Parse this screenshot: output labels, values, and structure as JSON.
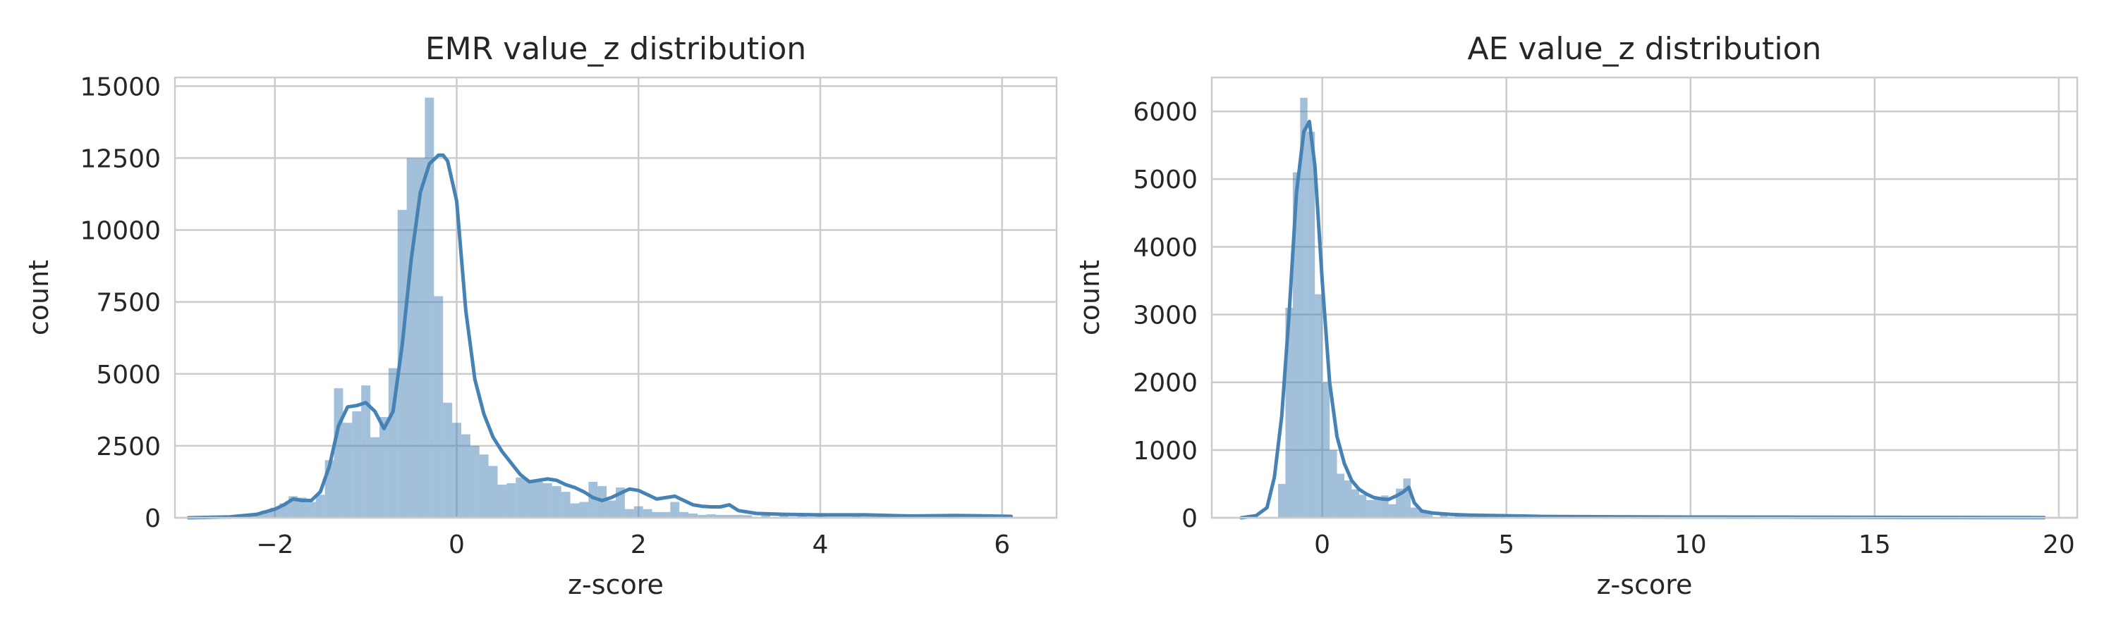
{
  "colors": {
    "bar": "#4682b4",
    "bar_opacity": 0.5,
    "kde": "#4682b4",
    "grid": "#cccccc",
    "text": "#262626"
  },
  "chart_data": [
    {
      "type": "bar",
      "title": "EMR value_z distribution",
      "xlabel": "z-score",
      "ylabel": "count",
      "xlim": [
        -3.1,
        6.6
      ],
      "ylim": [
        0,
        15300
      ],
      "xticks": [
        -2,
        0,
        2,
        4,
        6
      ],
      "xtick_labels": [
        "−2",
        "0",
        "2",
        "4",
        "6"
      ],
      "yticks": [
        0,
        2500,
        5000,
        7500,
        10000,
        12500,
        15000
      ],
      "ytick_labels": [
        "0",
        "2500",
        "5000",
        "7500",
        "10000",
        "12500",
        "15000"
      ],
      "grid": true,
      "histogram": {
        "x": [
          -2.9,
          -2.8,
          -2.7,
          -2.6,
          -2.5,
          -2.4,
          -2.3,
          -2.2,
          -2.1,
          -2.0,
          -1.9,
          -1.8,
          -1.7,
          -1.6,
          -1.5,
          -1.4,
          -1.3,
          -1.2,
          -1.1,
          -1.0,
          -0.9,
          -0.8,
          -0.7,
          -0.6,
          -0.5,
          -0.4,
          -0.3,
          -0.2,
          -0.1,
          0.0,
          0.1,
          0.2,
          0.3,
          0.4,
          0.5,
          0.6,
          0.7,
          0.8,
          0.9,
          1.0,
          1.1,
          1.2,
          1.3,
          1.4,
          1.5,
          1.6,
          1.7,
          1.8,
          1.9,
          2.0,
          2.1,
          2.2,
          2.3,
          2.4,
          2.5,
          2.6,
          2.7,
          2.8,
          2.9,
          3.0,
          3.1,
          3.2,
          3.4,
          3.6,
          3.8,
          4.0,
          4.4,
          4.8,
          5.2,
          5.6,
          6.0
        ],
        "values": [
          20,
          25,
          30,
          40,
          50,
          80,
          120,
          150,
          250,
          350,
          500,
          750,
          700,
          550,
          800,
          2000,
          4500,
          3300,
          3700,
          4600,
          2800,
          3500,
          5200,
          10700,
          12500,
          12500,
          14600,
          7700,
          4000,
          3300,
          2900,
          2500,
          2200,
          1800,
          1150,
          1200,
          1400,
          1300,
          1250,
          1200,
          1100,
          900,
          500,
          550,
          1250,
          1100,
          600,
          1050,
          300,
          400,
          300,
          200,
          200,
          550,
          200,
          150,
          100,
          120,
          100,
          100,
          100,
          90,
          80,
          80,
          70,
          60,
          50,
          45,
          40,
          35,
          30
        ],
        "bin_width": 0.1
      },
      "kde": {
        "x": [
          -2.95,
          -2.5,
          -2.2,
          -2.0,
          -1.9,
          -1.8,
          -1.7,
          -1.6,
          -1.5,
          -1.4,
          -1.3,
          -1.2,
          -1.1,
          -1.0,
          -0.9,
          -0.8,
          -0.7,
          -0.6,
          -0.5,
          -0.4,
          -0.3,
          -0.2,
          -0.15,
          -0.1,
          0.0,
          0.1,
          0.2,
          0.3,
          0.4,
          0.5,
          0.6,
          0.7,
          0.8,
          0.9,
          1.0,
          1.1,
          1.2,
          1.3,
          1.4,
          1.5,
          1.6,
          1.7,
          1.8,
          1.9,
          2.0,
          2.1,
          2.2,
          2.3,
          2.4,
          2.5,
          2.6,
          2.7,
          2.8,
          2.9,
          3.0,
          3.1,
          3.3,
          3.6,
          4.0,
          4.5,
          5.0,
          5.5,
          6.1
        ],
        "values": [
          0,
          30,
          120,
          300,
          450,
          650,
          600,
          600,
          900,
          1800,
          3200,
          3850,
          3900,
          4000,
          3700,
          3100,
          3700,
          6000,
          9000,
          11300,
          12300,
          12600,
          12600,
          12400,
          11000,
          7200,
          4800,
          3600,
          2800,
          2300,
          1900,
          1500,
          1250,
          1300,
          1350,
          1300,
          1150,
          1050,
          900,
          700,
          600,
          700,
          850,
          1000,
          950,
          800,
          650,
          700,
          750,
          600,
          450,
          400,
          380,
          380,
          450,
          250,
          150,
          120,
          100,
          100,
          60,
          80,
          50
        ]
      }
    },
    {
      "type": "bar",
      "title": "AE value_z distribution",
      "xlabel": "z-score",
      "ylabel": "count",
      "xlim": [
        -3.0,
        20.5
      ],
      "ylim": [
        0,
        6500
      ],
      "xticks": [
        0,
        5,
        10,
        15,
        20
      ],
      "xtick_labels": [
        "0",
        "5",
        "10",
        "15",
        "20"
      ],
      "yticks": [
        0,
        1000,
        2000,
        3000,
        4000,
        5000,
        6000
      ],
      "ytick_labels": [
        "0",
        "1000",
        "2000",
        "3000",
        "4000",
        "5000",
        "6000"
      ],
      "grid": true,
      "histogram": {
        "x": [
          -1.1,
          -0.9,
          -0.7,
          -0.5,
          -0.3,
          -0.1,
          0.1,
          0.3,
          0.5,
          0.7,
          0.9,
          1.1,
          1.3,
          1.5,
          1.7,
          1.9,
          2.1,
          2.3,
          2.5,
          2.7,
          2.9,
          3.3,
          3.7,
          4.1,
          4.5,
          5.0,
          6.0,
          7.0,
          8.0,
          9.0,
          10.0,
          12.0,
          14.0,
          16.0,
          18.0
        ],
        "values": [
          500,
          3100,
          5100,
          6200,
          5700,
          3300,
          2000,
          1000,
          650,
          550,
          420,
          340,
          260,
          280,
          330,
          200,
          430,
          580,
          150,
          110,
          90,
          70,
          50,
          40,
          30,
          25,
          15,
          10,
          8,
          6,
          5,
          4,
          3,
          2,
          2
        ],
        "bin_width": 0.2
      },
      "kde": {
        "x": [
          -2.2,
          -1.8,
          -1.5,
          -1.3,
          -1.1,
          -0.9,
          -0.7,
          -0.5,
          -0.35,
          -0.2,
          0.0,
          0.2,
          0.4,
          0.6,
          0.8,
          1.0,
          1.2,
          1.4,
          1.6,
          1.8,
          2.0,
          2.2,
          2.35,
          2.5,
          2.7,
          3.0,
          3.5,
          4.0,
          5.0,
          6.0,
          8.0,
          10.0,
          13.0,
          16.0,
          19.6
        ],
        "values": [
          0,
          30,
          150,
          600,
          1500,
          3000,
          4800,
          5700,
          5850,
          5200,
          3500,
          2000,
          1200,
          800,
          550,
          420,
          350,
          300,
          280,
          270,
          320,
          380,
          450,
          220,
          100,
          70,
          50,
          40,
          30,
          20,
          15,
          10,
          8,
          5,
          3
        ]
      }
    }
  ]
}
